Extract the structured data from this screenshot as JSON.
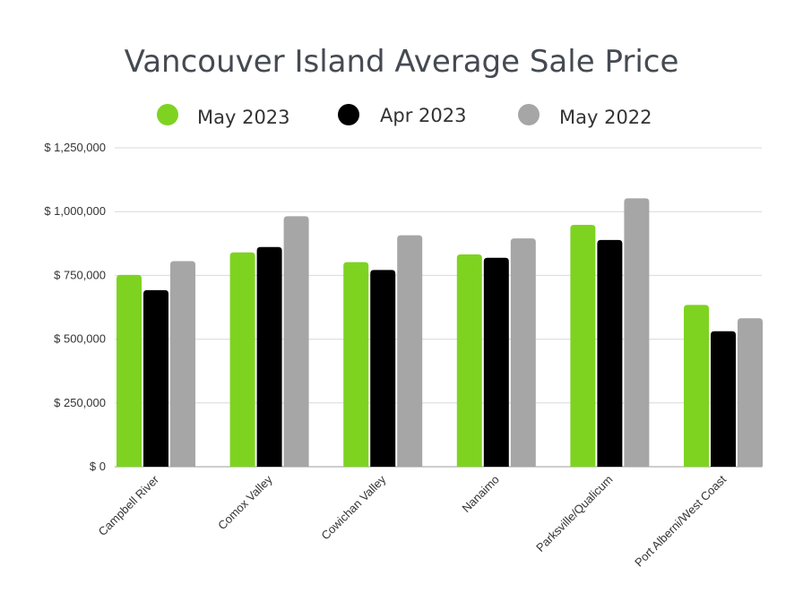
{
  "chart_data": {
    "type": "bar",
    "title": "Vancouver Island Average Sale Price",
    "categories": [
      "Campbell River",
      "Comox Valley",
      "Cowichan Valley",
      "Nanaimo",
      "Parksville/Qualicum",
      "Port Alberni/West Coast"
    ],
    "series": [
      {
        "name": "May 2023",
        "color": "#7ed321",
        "values": [
          752000,
          840000,
          802000,
          832000,
          948000,
          634000
        ]
      },
      {
        "name": "Apr 2023",
        "color": "#000000",
        "values": [
          692000,
          861000,
          771000,
          819000,
          889000,
          531000
        ]
      },
      {
        "name": "May 2022",
        "color": "#a6a6a6",
        "values": [
          806000,
          982000,
          907000,
          895000,
          1052000,
          582000
        ]
      }
    ],
    "ylim": [
      0,
      1250000
    ],
    "y_ticks": [
      {
        "value": 0,
        "label": "$ 0"
      },
      {
        "value": 250000,
        "label": "$ 250,000"
      },
      {
        "value": 500000,
        "label": "$ 500,000"
      },
      {
        "value": 750000,
        "label": "$ 750,000"
      },
      {
        "value": 1000000,
        "label": "$ 1,000,000"
      },
      {
        "value": 1250000,
        "label": "$ 1,250,000"
      }
    ],
    "grid": true,
    "legend_position": "top",
    "xlabel": "",
    "ylabel": ""
  }
}
